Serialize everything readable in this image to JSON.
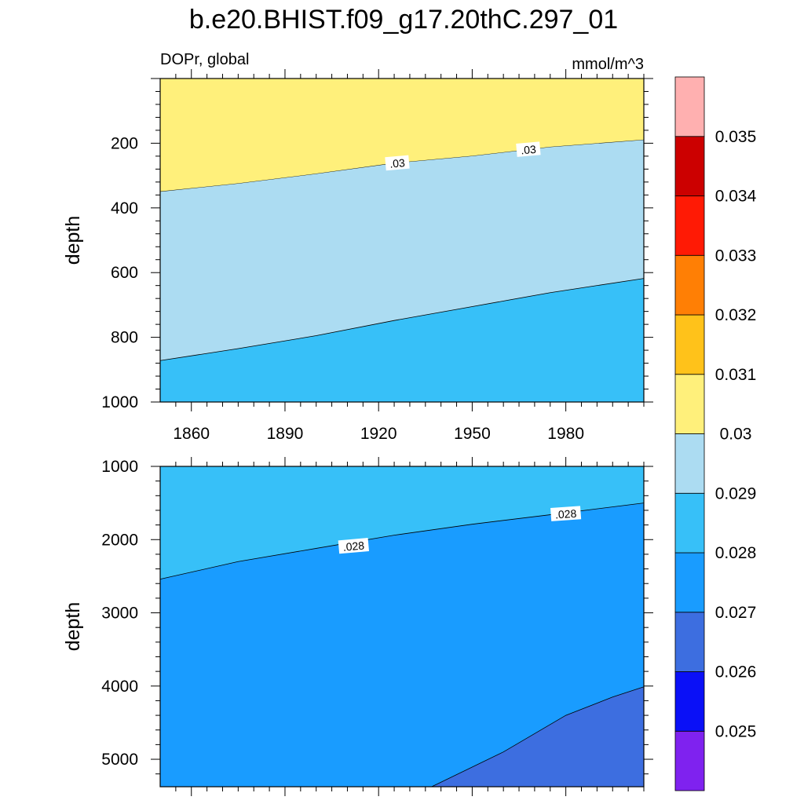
{
  "chart_data": {
    "type": "contour",
    "title": "b.e20.BHIST.f09_g17.20thC.297_01",
    "variable": "DOPr, global",
    "units": "mmol/m^3",
    "colors": {
      "c0025": "#7f22ef",
      "c0026": "#0a10f7",
      "c0027": "#3d6ee0",
      "c0028": "#199cff",
      "c0029": "#37c0f8",
      "c0030": "#acdcf2",
      "c0031": "#fff07b",
      "c0032": "#ffc21a",
      "c0033": "#ff7f05",
      "c0034": "#ff1a05",
      "c0035": "#cc0000",
      "c0036": "#ffb0b0"
    },
    "colorbar": {
      "levels": [
        "0.025",
        "0.026",
        "0.027",
        "0.028",
        "0.029",
        "0.03",
        "0.031",
        "0.032",
        "0.033",
        "0.034",
        "0.035"
      ],
      "fills": [
        "#7f22ef",
        "#0a10f7",
        "#3d6ee0",
        "#199cff",
        "#37c0f8",
        "#acdcf2",
        "#fff07b",
        "#ffc21a",
        "#ff7f05",
        "#ff1a05",
        "#cc0000",
        "#ffb0b0"
      ]
    },
    "x_axis": {
      "label": "",
      "range": [
        1850,
        2005
      ],
      "ticks": [
        1860,
        1890,
        1920,
        1950,
        1980
      ],
      "tick_labels": [
        "1860",
        "1890",
        "1920",
        "1950",
        "1980"
      ]
    },
    "panels": [
      {
        "name": "upper",
        "ylabel": "depth",
        "yrange": [
          0,
          1000
        ],
        "yticks": [
          200,
          400,
          600,
          800,
          1000
        ],
        "ytick_labels": [
          "200",
          "400",
          "600",
          "800",
          "1000"
        ],
        "background_fill": "#37c0f8",
        "regions": [
          {
            "level_fill": "#fff07b",
            "upper_boundary": "top",
            "boundary_years": [
              1850,
              1875,
              1900,
              1925,
              1950,
              1975,
              2005
            ],
            "boundary_depths": [
              350,
              325,
              295,
              262,
              240,
              212,
              190
            ]
          },
          {
            "level_fill": "#acdcf2",
            "upper_boundary": "prev",
            "boundary_years": [
              1850,
              1875,
              1900,
              1925,
              1950,
              1975,
              2005
            ],
            "boundary_depths": [
              872,
              835,
              795,
              748,
              705,
              662,
              618
            ]
          }
        ],
        "contour_labels": [
          {
            "text": ".03",
            "year": 1926,
            "depth": 262,
            "angle": -5
          },
          {
            "text": ".03",
            "year": 1968,
            "depth": 220,
            "angle": -5
          }
        ]
      },
      {
        "name": "lower",
        "ylabel": "depth",
        "yrange": [
          1000,
          5375
        ],
        "yticks": [
          1000,
          2000,
          3000,
          4000,
          5000
        ],
        "ytick_labels": [
          "1000",
          "2000",
          "3000",
          "4000",
          "5000"
        ],
        "background_fill": "#37c0f8",
        "regions": [
          {
            "level_fill": "#199cff",
            "upper_boundary": "line",
            "boundary_years": [
              1850,
              1875,
              1900,
              1925,
              1950,
              1975,
              2005
            ],
            "boundary_depths": [
              2540,
              2300,
              2120,
              1940,
              1790,
              1660,
              1500
            ]
          },
          {
            "level_fill": "#3d6ee0",
            "upper_boundary": "line",
            "boundary_years": [
              1937,
              1960,
              1980,
              1995,
              2005
            ],
            "boundary_depths": [
              5375,
              4900,
              4400,
              4150,
              4010
            ]
          }
        ],
        "contour_labels": [
          {
            "text": ".028",
            "year": 1912,
            "depth": 2090,
            "angle": -5
          },
          {
            "text": ".028",
            "year": 1980,
            "depth": 1650,
            "angle": -4
          }
        ]
      }
    ]
  }
}
